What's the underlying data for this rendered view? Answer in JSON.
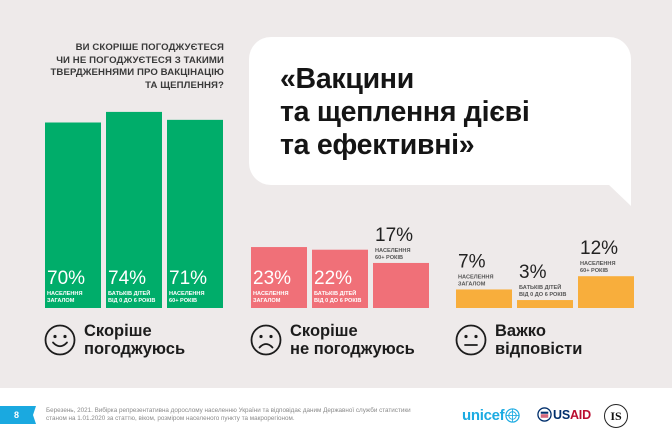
{
  "question": "ВИ СКОРІШЕ ПОГОДЖУЄТЕСЯ\nЧИ НЕ ПОГОДЖУЄТЕСЯ З ТАКИМИ\nТВЕРДЖЕННЯМИ ПРО ВАКЦІНАЦІЮ\nТА ЩЕПЛЕННЯ?",
  "question_lines": [
    "ВИ СКОРІШЕ ПОГОДЖУЄТЕСЯ",
    "ЧИ НЕ ПОГОДЖУЄТЕСЯ З ТАКИМИ",
    "ТВЕРДЖЕННЯМИ ПРО ВАКЦІНАЦІЮ",
    "ТА ЩЕПЛЕННЯ?"
  ],
  "statement": "«Вакцини\nта щеплення дієві\nта ефективні»",
  "colors": {
    "agree": "#00ad6a",
    "disagree": "#f07078",
    "hard": "#f8ae3c",
    "background": "#eeeaea",
    "bubble": "#ffffff",
    "page_tag": "#1aa9e0"
  },
  "chart_data": {
    "type": "bar",
    "title": "«Вакцини та щеплення дієві та ефективні»",
    "categories": [
      "населення загалом",
      "батьків дітей від 0 до 6 років",
      "населення 60+ років"
    ],
    "groups": [
      {
        "name": "Скоріше погоджуюсь",
        "icon": "smile-face-icon",
        "color": "#00ad6a",
        "values": [
          70,
          74,
          71
        ],
        "labels": [
          "70%",
          "74%",
          "71%"
        ],
        "sublabels": [
          [
            "НАСЕЛЕННЯ",
            "ЗАГАЛОМ"
          ],
          [
            "БАТЬКІВ ДІТЕЙ",
            "ВІД 0 ДО 6 РОКІВ"
          ],
          [
            "НАСЕЛЕННЯ",
            "60+ РОКІВ"
          ]
        ]
      },
      {
        "name": "Скоріше не погоджуюсь",
        "icon": "sad-face-icon",
        "color": "#f07078",
        "values": [
          23,
          22,
          17
        ],
        "labels": [
          "23%",
          "22%",
          "17%"
        ],
        "sublabels": [
          [
            "НАСЕЛЕННЯ",
            "ЗАГАЛОМ"
          ],
          [
            "БАТЬКІВ ДІТЕЙ",
            "ВІД 0 ДО 6 РОКІВ"
          ],
          [
            "НАСЕЛЕННЯ",
            "60+ РОКІВ"
          ]
        ]
      },
      {
        "name": "Важко відповісти",
        "icon": "neutral-face-icon",
        "color": "#f8ae3c",
        "values": [
          7,
          3,
          12
        ],
        "labels": [
          "7%",
          "3%",
          "12%"
        ],
        "sublabels": [
          [
            "НАСЕЛЕННЯ",
            "ЗАГАЛОМ"
          ],
          [
            "БАТЬКІВ ДІТЕЙ",
            "ВІД 0 ДО 6 РОКІВ"
          ],
          [
            "НАСЕЛЕННЯ",
            "60+ РОКІВ"
          ]
        ]
      }
    ],
    "ylim": [
      0,
      74
    ],
    "grid": false,
    "unit": "%"
  },
  "legend": [
    {
      "icon": "smile-face-icon",
      "label": "Скоріше\nпогоджуюсь"
    },
    {
      "icon": "sad-face-icon",
      "label": "Скоріше\nне погоджуюсь"
    },
    {
      "icon": "neutral-face-icon",
      "label": "Важко\nвідповісти"
    }
  ],
  "footer": {
    "page_number": "8",
    "source": "Березень, 2021. Вибірка репрезентативна дорослому населенню України та відповідає даним Державної служби статистики станом на 1.01.2020 за статтю, віком, розміром населеного пункту та макрорегіоном.",
    "logos": {
      "unicef": "unicef",
      "usaid_us": "US",
      "usaid_aid": "AID",
      "is": "IS"
    }
  }
}
